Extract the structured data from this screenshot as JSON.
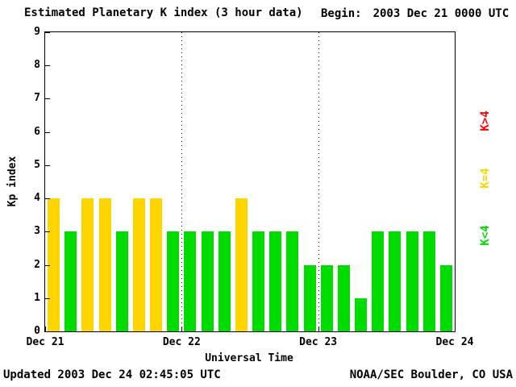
{
  "title": "Estimated Planetary K index (3 hour data)",
  "begin_label": "Begin:",
  "begin_value": "2003 Dec 21 0000 UTC",
  "footer": {
    "updated": "Updated 2003 Dec 24 02:45:05 UTC",
    "source": "NOAA/SEC Boulder, CO USA"
  },
  "legend": [
    {
      "label": "K>4",
      "color": "#ff0000"
    },
    {
      "label": "K=4",
      "color": "#ffd500"
    },
    {
      "label": "K<4",
      "color": "#00dc00"
    }
  ],
  "chart_data": {
    "type": "bar",
    "title": "Estimated Planetary K index (3 hour data)",
    "xlabel": "Universal Time",
    "ylabel": "Kp index",
    "ylim": [
      0,
      9
    ],
    "y_ticks": [
      0,
      1,
      2,
      3,
      4,
      5,
      6,
      7,
      8,
      9
    ],
    "x_ticks": [
      "Dec 21",
      "Dec 22",
      "Dec 23",
      "Dec 24"
    ],
    "hours_per_bar": 3,
    "days": [
      {
        "date": "Dec 21",
        "values": [
          4,
          3,
          4,
          4,
          3,
          4,
          4,
          3
        ]
      },
      {
        "date": "Dec 22",
        "values": [
          3,
          3,
          3,
          4,
          3,
          3,
          3,
          2
        ]
      },
      {
        "date": "Dec 23",
        "values": [
          2,
          2,
          1,
          3,
          3,
          3,
          3,
          2
        ]
      }
    ],
    "color_rules": {
      "below_4": "#00dc00",
      "equal_4": "#ffd500",
      "above_4": "#ff0000"
    },
    "grid": "dotted vertical lines at day boundaries",
    "legend_position": "right"
  }
}
